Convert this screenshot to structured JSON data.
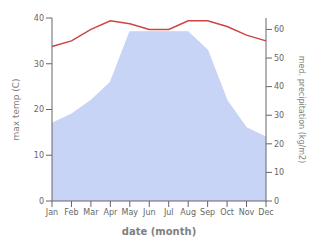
{
  "chart_data": {
    "type": "combo",
    "categories": [
      "Jan",
      "Feb",
      "Mar",
      "Apr",
      "May",
      "Jun",
      "Jul",
      "Aug",
      "Sep",
      "Oct",
      "Nov",
      "Dec"
    ],
    "series": [
      {
        "type": "area",
        "color": "#c8d4f5",
        "values": [
          17,
          19,
          22,
          26,
          37,
          37,
          37,
          37,
          33,
          22,
          16,
          14
        ]
      },
      {
        "type": "line",
        "color": "#cc4444",
        "axis": "y2",
        "values": [
          54,
          56,
          60,
          63,
          62,
          60,
          60,
          63,
          63,
          61,
          58,
          56
        ]
      }
    ],
    "xlabel": "date (month)",
    "ylabel": "max temp (C)",
    "y2label": "med. precipitation (kg/m2)",
    "ylim": [
      0,
      40
    ],
    "yticks": [
      0,
      10,
      20,
      30,
      40
    ],
    "y2lim": [
      0,
      64
    ],
    "y2ticks": [
      0,
      10,
      20,
      30,
      40,
      50,
      60
    ],
    "grid": false
  }
}
